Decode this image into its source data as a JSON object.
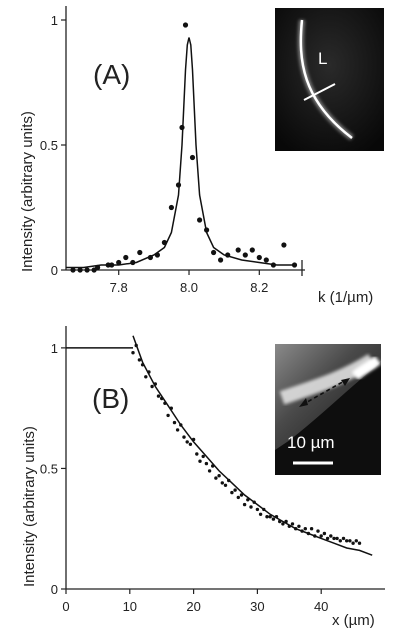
{
  "chart_data": [
    {
      "panel_label": "(A)",
      "type": "scatter",
      "xlabel": "k (1/µm)",
      "ylabel": "Intensity (arbitrary units)",
      "xlim": [
        7.65,
        8.33
      ],
      "ylim": [
        0,
        1.0
      ],
      "x_ticks": [
        7.8,
        8.0,
        8.2
      ],
      "x_tick_labels": [
        "7.8",
        "8.0",
        "8.2"
      ],
      "y_ticks": [
        0,
        0.5,
        1
      ],
      "y_tick_labels": [
        "0",
        "0.5",
        "1"
      ],
      "grid": false,
      "series": [
        {
          "style": "points",
          "x": [
            7.67,
            7.69,
            7.71,
            7.73,
            7.74,
            7.77,
            7.78,
            7.8,
            7.82,
            7.84,
            7.86,
            7.89,
            7.91,
            7.93,
            7.95,
            7.97,
            7.98,
            7.99,
            8.01,
            8.03,
            8.05,
            8.07,
            8.09,
            8.11,
            8.14,
            8.16,
            8.18,
            8.2,
            8.22,
            8.24,
            8.27,
            8.3
          ],
          "y": [
            0.0,
            0.0,
            0.0,
            0.0,
            0.01,
            0.02,
            0.02,
            0.03,
            0.05,
            0.03,
            0.07,
            0.05,
            0.06,
            0.11,
            0.25,
            0.34,
            0.57,
            0.98,
            0.45,
            0.2,
            0.16,
            0.07,
            0.04,
            0.06,
            0.08,
            0.06,
            0.08,
            0.05,
            0.04,
            0.02,
            0.1,
            0.02
          ]
        },
        {
          "style": "line",
          "x": [
            7.65,
            7.7,
            7.75,
            7.8,
            7.85,
            7.9,
            7.93,
            7.95,
            7.97,
            7.98,
            7.99,
            7.995,
            8.0,
            8.005,
            8.01,
            8.02,
            8.03,
            8.05,
            8.07,
            8.1,
            8.15,
            8.2,
            8.25,
            8.3
          ],
          "y": [
            0.01,
            0.01,
            0.02,
            0.02,
            0.03,
            0.06,
            0.09,
            0.15,
            0.3,
            0.5,
            0.8,
            0.9,
            0.93,
            0.9,
            0.8,
            0.5,
            0.3,
            0.15,
            0.09,
            0.06,
            0.04,
            0.03,
            0.02,
            0.02
          ]
        }
      ],
      "inset": {
        "label": "L"
      }
    },
    {
      "panel_label": "(B)",
      "type": "scatter",
      "xlabel": "x (µm)",
      "ylabel": "Intensity (arbitrary units)",
      "xlim": [
        0,
        50
      ],
      "ylim": [
        0,
        1.07
      ],
      "x_ticks": [
        0,
        10,
        20,
        30,
        40
      ],
      "x_tick_labels": [
        "0",
        "10",
        "20",
        "30",
        "40"
      ],
      "y_ticks": [
        0,
        0.5,
        1
      ],
      "y_tick_labels": [
        "0",
        "0.5",
        "1"
      ],
      "grid": false,
      "series": [
        {
          "style": "points",
          "x": [
            10.5,
            11,
            11.5,
            12,
            12.5,
            13,
            13.5,
            14,
            14.5,
            15,
            15.5,
            16,
            16.5,
            17,
            17.5,
            18,
            18.5,
            19,
            19.5,
            20,
            20.5,
            21,
            21.5,
            22,
            22.5,
            23,
            23.5,
            24,
            24.5,
            25,
            25.5,
            26,
            26.5,
            27,
            27.5,
            28,
            28.5,
            29,
            29.5,
            30,
            30.5,
            31,
            31.5,
            32,
            32.5,
            33,
            33.5,
            34,
            34.5,
            35,
            35.5,
            36,
            36.5,
            37,
            37.5,
            38,
            38.5,
            39,
            39.5,
            40,
            40.5,
            41,
            41.5,
            42,
            42.5,
            43,
            43.5,
            44,
            44.5,
            45,
            45.5,
            46
          ],
          "y": [
            0.98,
            1.01,
            0.95,
            0.93,
            0.88,
            0.9,
            0.84,
            0.85,
            0.8,
            0.79,
            0.77,
            0.72,
            0.75,
            0.69,
            0.66,
            0.68,
            0.63,
            0.61,
            0.6,
            0.62,
            0.56,
            0.53,
            0.55,
            0.52,
            0.49,
            0.51,
            0.46,
            0.47,
            0.44,
            0.43,
            0.45,
            0.4,
            0.41,
            0.38,
            0.39,
            0.35,
            0.37,
            0.34,
            0.36,
            0.33,
            0.31,
            0.33,
            0.3,
            0.3,
            0.29,
            0.3,
            0.28,
            0.27,
            0.28,
            0.26,
            0.27,
            0.25,
            0.26,
            0.24,
            0.25,
            0.23,
            0.25,
            0.22,
            0.24,
            0.22,
            0.23,
            0.21,
            0.22,
            0.21,
            0.21,
            0.2,
            0.21,
            0.2,
            0.2,
            0.19,
            0.2,
            0.19
          ]
        },
        {
          "style": "line",
          "x": [
            0,
            9,
            10.5
          ],
          "y": [
            1.0,
            1.0,
            1.0
          ]
        },
        {
          "style": "line",
          "x": [
            10.5,
            12,
            14,
            16,
            18,
            20,
            22,
            24,
            26,
            28,
            30,
            32,
            34,
            36,
            38,
            40,
            42,
            44,
            46,
            48
          ],
          "y": [
            1.05,
            0.94,
            0.84,
            0.76,
            0.68,
            0.61,
            0.55,
            0.49,
            0.44,
            0.39,
            0.35,
            0.31,
            0.28,
            0.25,
            0.23,
            0.21,
            0.19,
            0.17,
            0.16,
            0.14
          ]
        }
      ],
      "inset": {
        "scale_bar_label": "10 µm"
      }
    }
  ]
}
